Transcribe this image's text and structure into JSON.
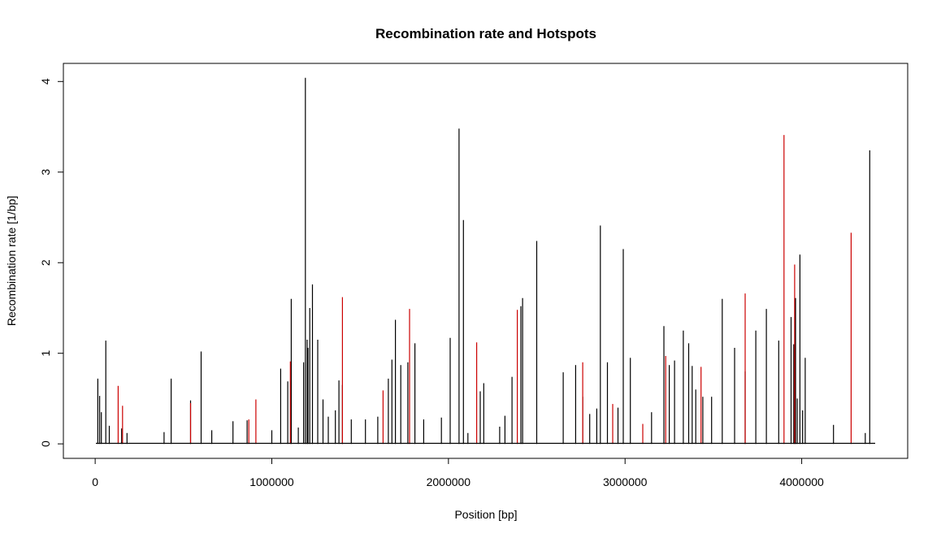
{
  "chart_data": {
    "type": "line",
    "title": "Recombination rate and Hotspots",
    "xlabel": "Position [bp]",
    "ylabel": "Recombination rate [1/bp]",
    "xlim": [
      -180000,
      4600000
    ],
    "ylim": [
      -0.16,
      4.2
    ],
    "x_ticks": [
      0,
      1000000,
      2000000,
      3000000,
      4000000
    ],
    "x_tick_labels": [
      "0",
      "1000000",
      "2000000",
      "3000000",
      "4000000"
    ],
    "y_ticks": [
      0,
      1,
      2,
      3,
      4
    ],
    "y_tick_labels": [
      "0",
      "1",
      "2",
      "3",
      "4"
    ],
    "grid": false,
    "series": [
      {
        "color": "#000000",
        "x": [
          15000,
          25000,
          35000,
          60000,
          80000,
          150000,
          180000,
          390000,
          430000,
          540000,
          600000,
          660000,
          780000,
          860000,
          1000000,
          1050000,
          1090000,
          1110000,
          1150000,
          1180000,
          1190000,
          1200000,
          1205000,
          1215000,
          1230000,
          1260000,
          1290000,
          1320000,
          1360000,
          1380000,
          1400000,
          1450000,
          1530000,
          1600000,
          1660000,
          1680000,
          1700000,
          1730000,
          1770000,
          1810000,
          1860000,
          1960000,
          2010000,
          2060000,
          2085000,
          2110000,
          2180000,
          2200000,
          2290000,
          2320000,
          2360000,
          2410000,
          2420000,
          2500000,
          2650000,
          2720000,
          2760000,
          2800000,
          2840000,
          2860000,
          2900000,
          2960000,
          2990000,
          3030000,
          3150000,
          3220000,
          3250000,
          3280000,
          3330000,
          3360000,
          3380000,
          3400000,
          3440000,
          3490000,
          3550000,
          3620000,
          3680000,
          3740000,
          3800000,
          3870000,
          3940000,
          3955000,
          3965000,
          3975000,
          3990000,
          4005000,
          4020000,
          4180000,
          4360000,
          4385000
        ],
        "y": [
          0.72,
          0.53,
          0.35,
          1.14,
          0.2,
          0.17,
          0.12,
          0.13,
          0.72,
          0.48,
          1.02,
          0.15,
          0.25,
          0.26,
          0.15,
          0.83,
          0.69,
          1.6,
          0.18,
          0.9,
          4.04,
          1.15,
          1.06,
          1.5,
          1.76,
          1.15,
          0.49,
          0.3,
          0.37,
          0.7,
          0.65,
          0.27,
          0.27,
          0.3,
          0.72,
          0.93,
          1.37,
          0.87,
          0.9,
          1.11,
          0.27,
          0.29,
          1.17,
          3.48,
          2.47,
          0.12,
          0.58,
          0.67,
          0.19,
          0.31,
          0.74,
          1.52,
          1.61,
          2.24,
          0.79,
          0.87,
          0.52,
          0.33,
          0.39,
          2.41,
          0.9,
          0.4,
          2.15,
          0.95,
          0.35,
          1.3,
          0.87,
          0.92,
          1.25,
          1.11,
          0.86,
          0.6,
          0.52,
          0.52,
          1.6,
          1.06,
          0.8,
          1.25,
          1.49,
          1.14,
          1.4,
          1.1,
          1.61,
          0.5,
          2.09,
          0.37,
          0.95,
          0.21,
          0.12,
          3.24
        ]
      },
      {
        "color": "#cc0000",
        "x": [
          130000,
          155000,
          540000,
          870000,
          910000,
          1105000,
          1400000,
          1630000,
          1780000,
          2160000,
          2390000,
          2760000,
          2930000,
          3100000,
          3230000,
          3430000,
          3680000,
          3900000,
          3960000,
          4280000
        ],
        "y": [
          0.64,
          0.42,
          0.45,
          0.27,
          0.49,
          0.91,
          1.62,
          0.59,
          1.49,
          1.12,
          1.48,
          0.9,
          0.44,
          0.22,
          0.97,
          0.85,
          1.66,
          3.41,
          1.98,
          2.33
        ]
      }
    ]
  }
}
